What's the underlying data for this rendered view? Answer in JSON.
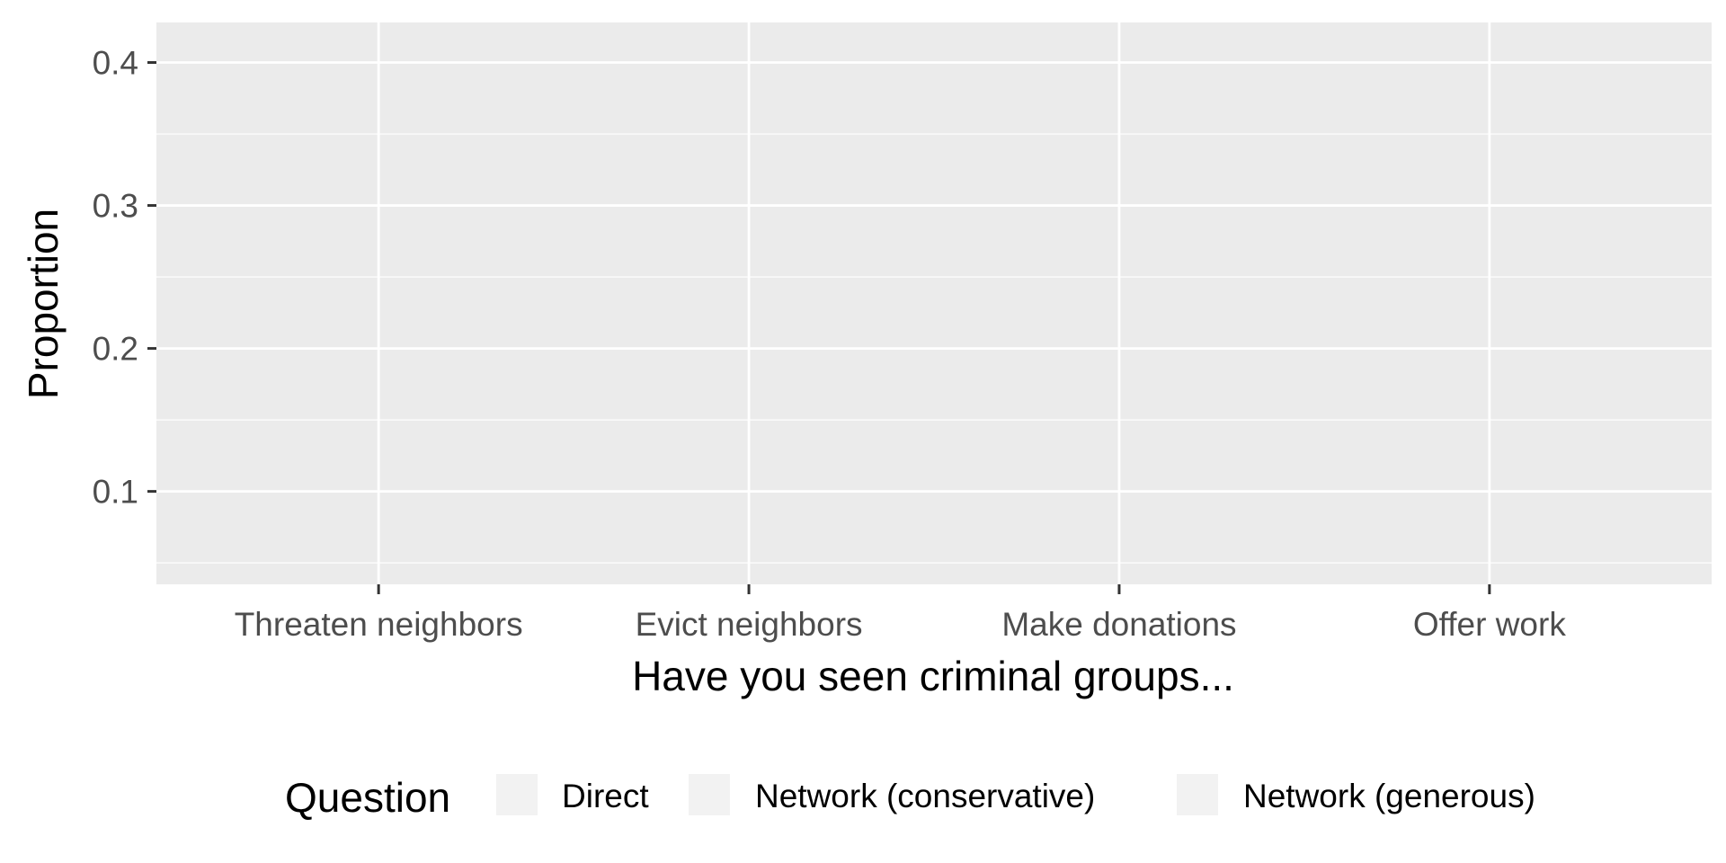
{
  "chart_data": {
    "type": "bar",
    "title": "",
    "xlabel": "Have you seen criminal groups...",
    "ylabel": "Proportion",
    "categories": [
      "Threaten neighbors",
      "Evict neighbors",
      "Make donations",
      "Offer work"
    ],
    "series": [
      {
        "name": "Direct",
        "values": [
          null,
          null,
          null,
          null
        ]
      },
      {
        "name": "Network (conservative)",
        "values": [
          null,
          null,
          null,
          null
        ]
      },
      {
        "name": "Network (generous)",
        "values": [
          null,
          null,
          null,
          null
        ]
      }
    ],
    "ylim": [
      0.035,
      0.428
    ],
    "yticks": [
      0.1,
      0.2,
      0.3,
      0.4
    ],
    "ytick_labels": [
      "0.1",
      "0.2",
      "0.3",
      "0.4"
    ],
    "grid": true,
    "legend": {
      "title": "Question",
      "position": "bottom"
    },
    "colors": {
      "panel": "#ebebeb",
      "grid": "#ffffff",
      "legend_key": "#f2f2f2"
    }
  }
}
